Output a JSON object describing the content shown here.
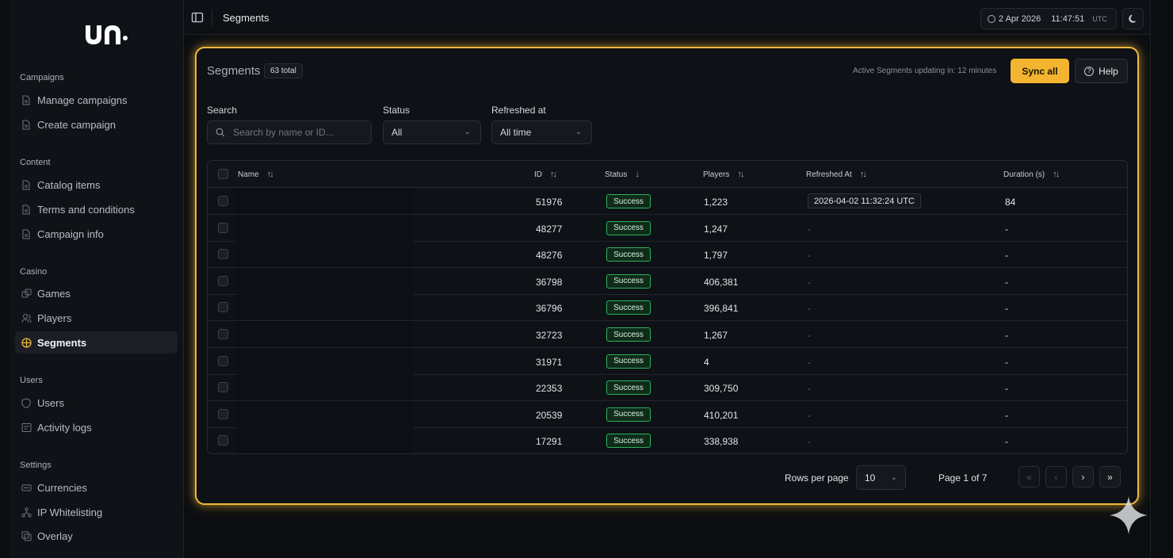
{
  "topbar": {
    "title": "Segments",
    "date": "2 Apr 2026",
    "time": "11:47:51",
    "tz": "UTC"
  },
  "sidebar": {
    "sections": [
      {
        "label": "Campaigns",
        "items": [
          {
            "label": "Manage campaigns",
            "icon": "document-icon"
          },
          {
            "label": "Create campaign",
            "icon": "document-icon"
          }
        ]
      },
      {
        "label": "Content",
        "items": [
          {
            "label": "Catalog items",
            "icon": "document-icon"
          },
          {
            "label": "Terms and conditions",
            "icon": "document-icon"
          },
          {
            "label": "Campaign info",
            "icon": "document-icon"
          }
        ]
      },
      {
        "label": "Casino",
        "items": [
          {
            "label": "Games",
            "icon": "dice-icon"
          },
          {
            "label": "Players",
            "icon": "users-icon"
          },
          {
            "label": "Segments",
            "icon": "segments-icon",
            "active": true
          }
        ]
      },
      {
        "label": "Users",
        "items": [
          {
            "label": "Users",
            "icon": "shield-icon"
          },
          {
            "label": "Activity logs",
            "icon": "log-icon"
          }
        ]
      },
      {
        "label": "Settings",
        "items": [
          {
            "label": "Currencies",
            "icon": "currency-icon"
          },
          {
            "label": "IP Whitelisting",
            "icon": "network-icon"
          },
          {
            "label": "Overlay",
            "icon": "overlay-icon"
          }
        ]
      }
    ]
  },
  "card": {
    "title": "Segments",
    "total": "63 total",
    "updating": "Active Segments updating in: 12 minutes",
    "sync_label": "Sync all",
    "help_label": "Help"
  },
  "filters": {
    "search_label": "Search",
    "search_placeholder": "Search by name or ID...",
    "status_label": "Status",
    "status_value": "All",
    "refreshed_label": "Refreshed at",
    "refreshed_value": "All time"
  },
  "table": {
    "columns": [
      "Name",
      "ID",
      "Status",
      "Players",
      "Refreshed At",
      "Duration (s)"
    ],
    "rows": [
      {
        "name": "",
        "id": "51976",
        "status": "Success",
        "players": "1,223",
        "refreshed": "2026-04-02 11:32:24 UTC",
        "duration": "84"
      },
      {
        "name": "",
        "id": "48277",
        "status": "Success",
        "players": "1,247",
        "refreshed": "-",
        "duration": "-"
      },
      {
        "name": "",
        "id": "48276",
        "status": "Success",
        "players": "1,797",
        "refreshed": "-",
        "duration": "-"
      },
      {
        "name": "",
        "id": "36798",
        "status": "Success",
        "players": "406,381",
        "refreshed": "-",
        "duration": "-"
      },
      {
        "name": "",
        "id": "36796",
        "status": "Success",
        "players": "396,841",
        "refreshed": "-",
        "duration": "-"
      },
      {
        "name": "",
        "id": "32723",
        "status": "Success",
        "players": "1,267",
        "refreshed": "-",
        "duration": "-"
      },
      {
        "name": "",
        "id": "31971",
        "status": "Success",
        "players": "4",
        "refreshed": "-",
        "duration": "-"
      },
      {
        "name": "",
        "id": "22353",
        "status": "Success",
        "players": "309,750",
        "refreshed": "-",
        "duration": "-"
      },
      {
        "name": "",
        "id": "20539",
        "status": "Success",
        "players": "410,201",
        "refreshed": "-",
        "duration": "-"
      },
      {
        "name": "",
        "id": "17291",
        "status": "Success",
        "players": "338,938",
        "refreshed": "-",
        "duration": "-"
      }
    ]
  },
  "pagination": {
    "rows_per_page_label": "Rows per page",
    "rows_per_page": "10",
    "page_info": "Page 1 of 7"
  },
  "colors": {
    "accent": "#f3b52f",
    "success": "#2bb35a",
    "background": "#0b0d11"
  }
}
